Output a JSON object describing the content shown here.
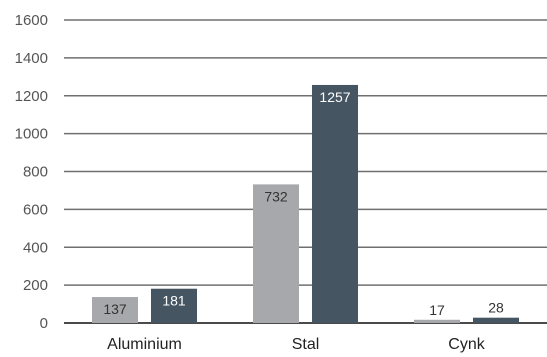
{
  "chart_data": {
    "type": "bar",
    "categories": [
      "Aluminium",
      "Stal",
      "Cynk"
    ],
    "series": [
      {
        "values": [
          137,
          732,
          17
        ],
        "color": "#a6a8ab"
      },
      {
        "values": [
          181,
          1257,
          28
        ],
        "color": "#465562"
      }
    ],
    "data_labels": [
      [
        "137",
        "732",
        "17"
      ],
      [
        "181",
        "1257",
        "28"
      ]
    ],
    "yticks": [
      0,
      200,
      400,
      600,
      800,
      1000,
      1200,
      1400,
      1600
    ],
    "ylim": [
      0,
      1600
    ],
    "grid": true,
    "legend": "none",
    "title": "",
    "xlabel": "",
    "ylabel": ""
  }
}
